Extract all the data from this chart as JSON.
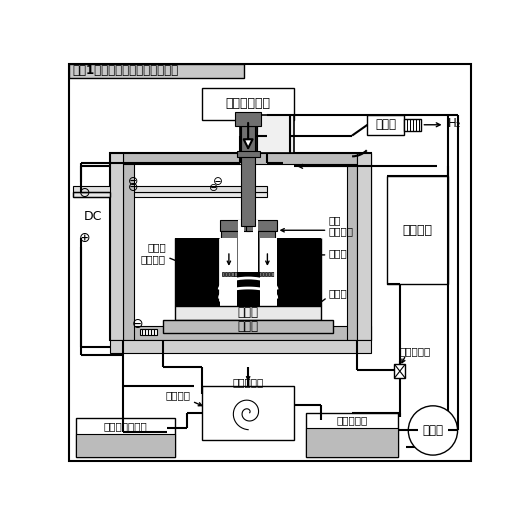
{
  "title": "》図1》電解加工機の一般的構成",
  "title_text": "【図1】電解加工機の一般的構成",
  "label_teisoku": "定速工具送り",
  "label_fan": "ファン",
  "label_h2": "H₂",
  "label_filter": "フィルタ",
  "label_dc": "DC",
  "label_kougu": "工具\n（陰極）",
  "label_kakobutsu": "加工物\n（陽極）",
  "label_zetsuen1": "絶縁物",
  "label_zetsuen2": "絶縁物",
  "label_jig": "治　具",
  "label_base": "ベース",
  "label_bunryu": "分流バルブ",
  "label_enshin": "遠心分離機",
  "label_zansa": "残渣放出",
  "label_shiyo": "使用済み電解液",
  "label_seijo": "清浄電解液",
  "label_pump": "ポンプ",
  "gray_dark": "#707070",
  "gray_med": "#999999",
  "gray_light": "#bbbbbb",
  "gray_bg": "#c8c8c8",
  "black": "#000000",
  "white": "#ffffff"
}
